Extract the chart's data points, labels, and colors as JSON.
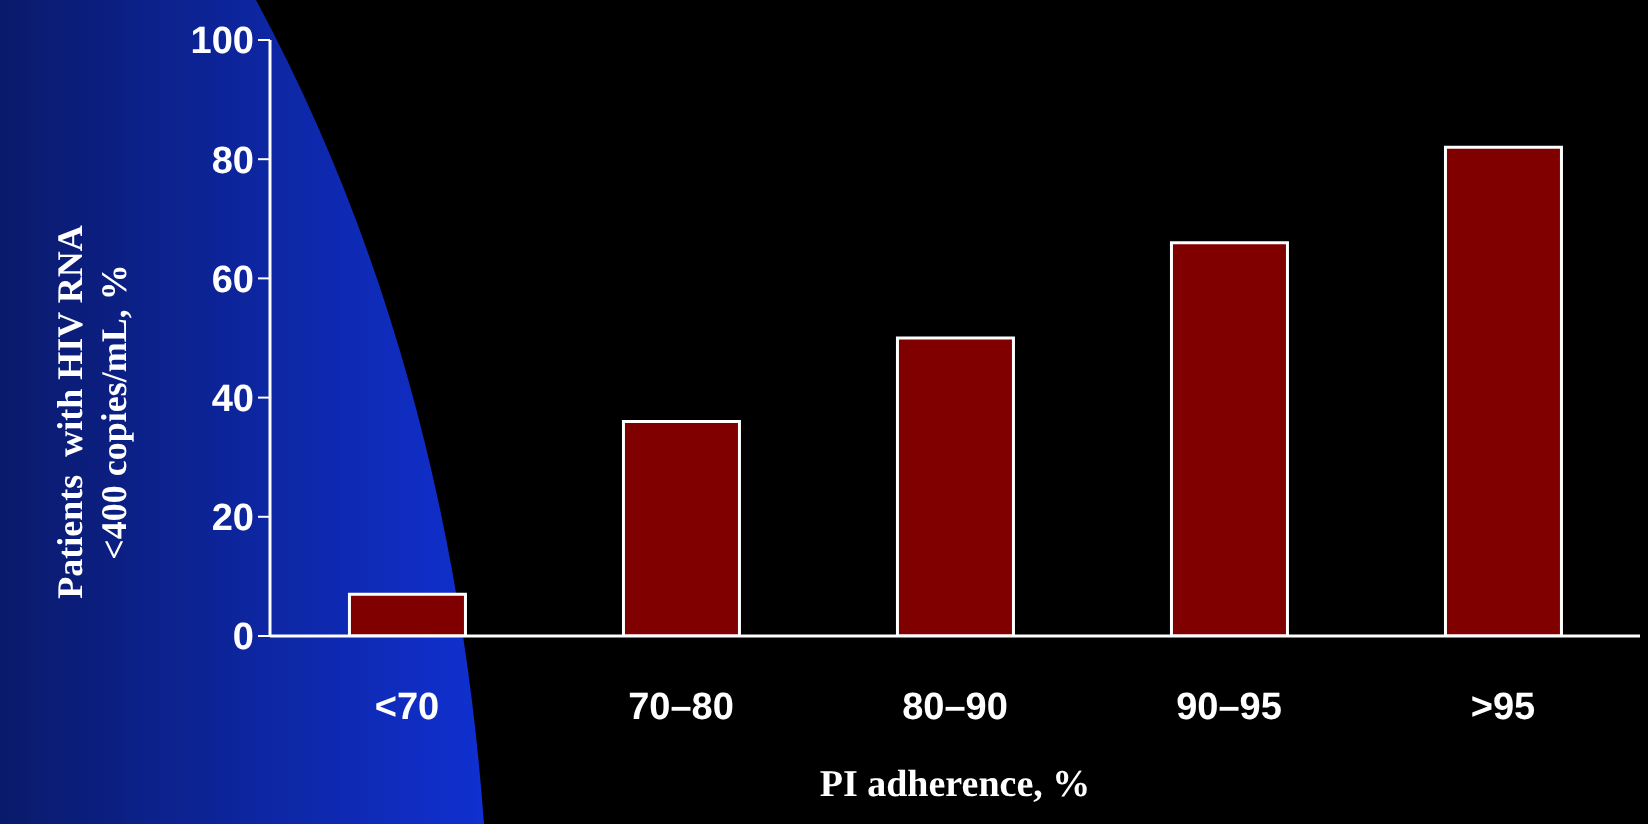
{
  "chart_data": {
    "type": "bar",
    "xlabel": "PI adherence, %",
    "ylabel": "Patients  with HIV RNA\n<400 copies/mL, %",
    "categories": [
      "<70",
      "70–80",
      "80–90",
      "90–95",
      ">95"
    ],
    "values": [
      7,
      36,
      50,
      66,
      82
    ],
    "color": "#800000",
    "ylim": [
      0,
      100
    ],
    "yticks": [
      0,
      20,
      40,
      60,
      80,
      100
    ]
  }
}
